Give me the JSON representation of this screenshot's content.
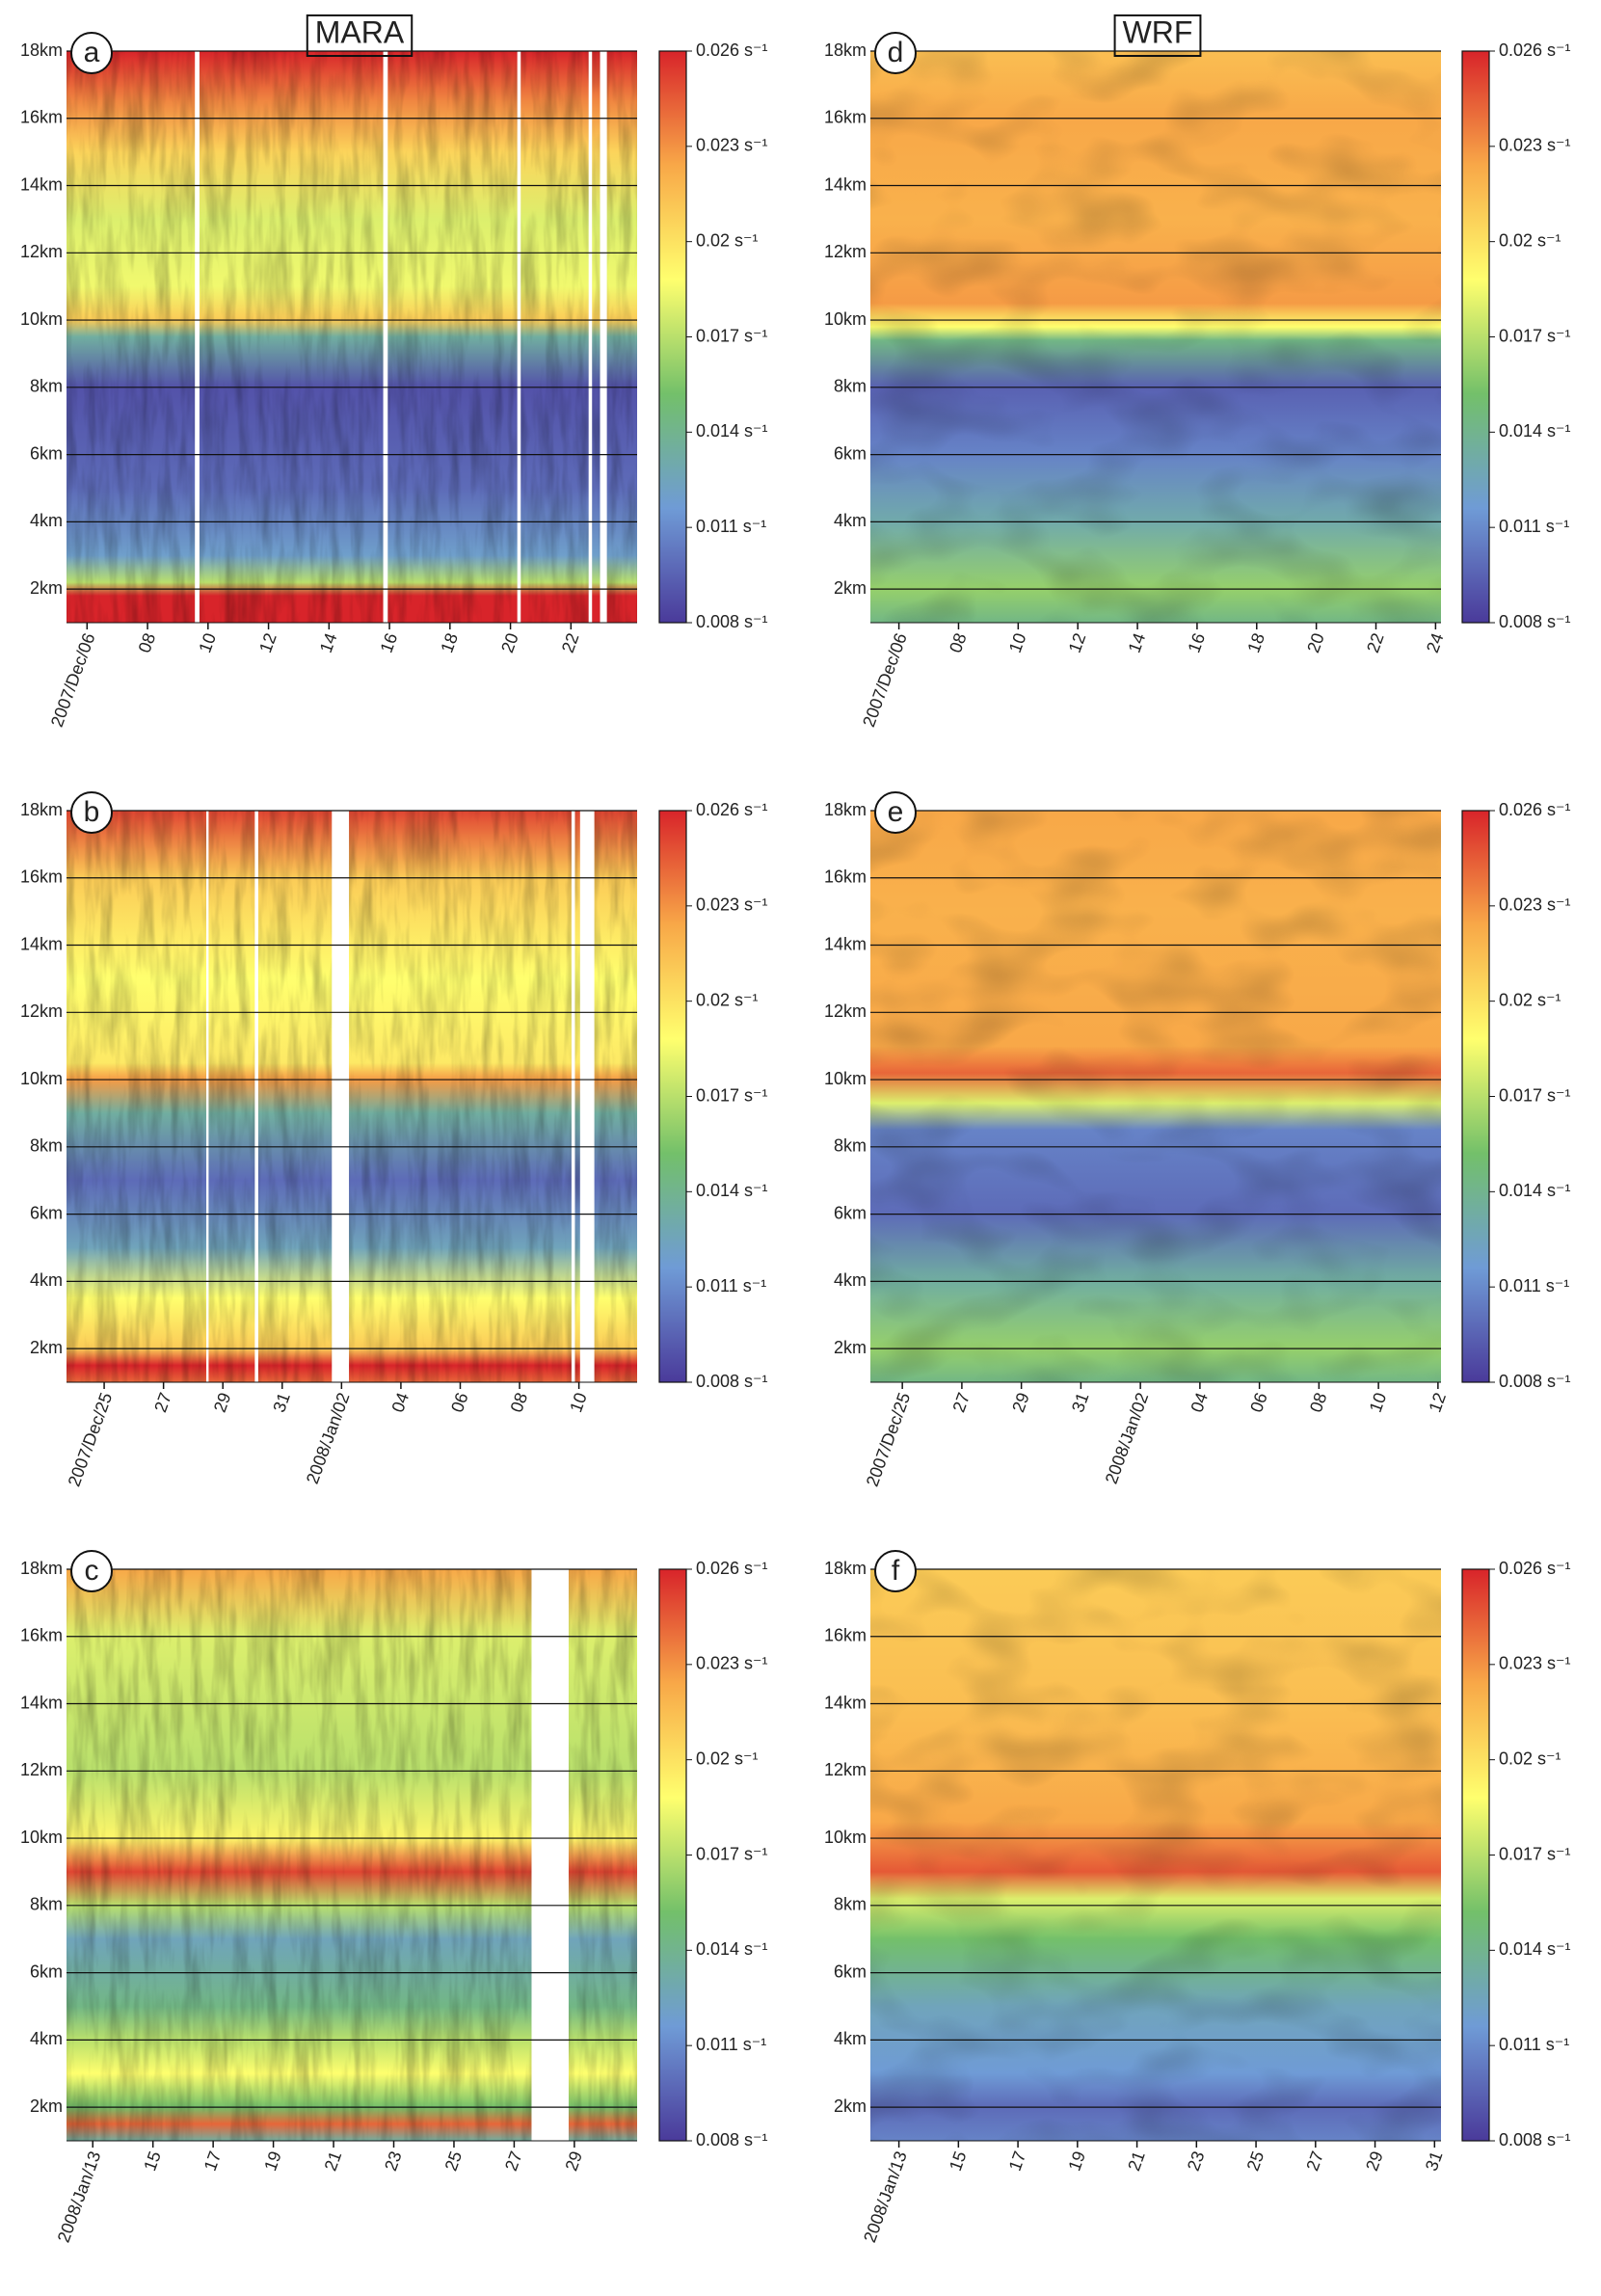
{
  "colorscale": [
    "#4a3a9a",
    "#6f9bd6",
    "#73c06a",
    "#ffff6e",
    "#f8a848",
    "#d8242a"
  ],
  "chart_data": [
    {
      "type": "heatmap",
      "label": "a",
      "title": "MARA",
      "xticks": [
        "2007/Dec/06",
        "08",
        "10",
        "12",
        "14",
        "16",
        "18",
        "20",
        "22"
      ],
      "ylim": [
        1,
        18
      ],
      "yticks": [
        {
          "value": 2,
          "label": "2km"
        },
        {
          "value": 4,
          "label": "4km"
        },
        {
          "value": 6,
          "label": "6km"
        },
        {
          "value": 8,
          "label": "8km"
        },
        {
          "value": 10,
          "label": "10km"
        },
        {
          "value": 12,
          "label": "12km"
        },
        {
          "value": 14,
          "label": "14km"
        },
        {
          "value": 16,
          "label": "16km"
        },
        {
          "value": 18,
          "label": "18km"
        }
      ],
      "clim": [
        0.008,
        0.026
      ],
      "cticks": [
        {
          "value": 0.008,
          "label": "0.008 s⁻¹"
        },
        {
          "value": 0.011,
          "label": "0.011 s⁻¹"
        },
        {
          "value": 0.014,
          "label": "0.014 s⁻¹"
        },
        {
          "value": 0.017,
          "label": "0.017 s⁻¹"
        },
        {
          "value": 0.02,
          "label": "0.02 s⁻¹"
        },
        {
          "value": 0.023,
          "label": "0.023 s⁻¹"
        },
        {
          "value": 0.026,
          "label": "0.026 s⁻¹"
        }
      ]
    },
    {
      "type": "heatmap",
      "label": "b",
      "xticks": [
        "2007/Dec/25",
        "27",
        "29",
        "31",
        "2008/Jan/02",
        "04",
        "06",
        "08",
        "10"
      ],
      "ylim": [
        1,
        18
      ],
      "yticks": [
        {
          "value": 2,
          "label": "2km"
        },
        {
          "value": 4,
          "label": "4km"
        },
        {
          "value": 6,
          "label": "6km"
        },
        {
          "value": 8,
          "label": "8km"
        },
        {
          "value": 10,
          "label": "10km"
        },
        {
          "value": 12,
          "label": "12km"
        },
        {
          "value": 14,
          "label": "14km"
        },
        {
          "value": 16,
          "label": "16km"
        },
        {
          "value": 18,
          "label": "18km"
        }
      ],
      "clim": [
        0.008,
        0.026
      ],
      "cticks": [
        {
          "value": 0.008,
          "label": "0.008 s⁻¹"
        },
        {
          "value": 0.011,
          "label": "0.011 s⁻¹"
        },
        {
          "value": 0.014,
          "label": "0.014 s⁻¹"
        },
        {
          "value": 0.017,
          "label": "0.017 s⁻¹"
        },
        {
          "value": 0.02,
          "label": "0.02 s⁻¹"
        },
        {
          "value": 0.023,
          "label": "0.023 s⁻¹"
        },
        {
          "value": 0.026,
          "label": "0.026 s⁻¹"
        }
      ]
    },
    {
      "type": "heatmap",
      "label": "c",
      "xticks": [
        "2008/Jan/13",
        "15",
        "17",
        "19",
        "21",
        "23",
        "25",
        "27",
        "29"
      ],
      "ylim": [
        1,
        18
      ],
      "yticks": [
        {
          "value": 2,
          "label": "2km"
        },
        {
          "value": 4,
          "label": "4km"
        },
        {
          "value": 6,
          "label": "6km"
        },
        {
          "value": 8,
          "label": "8km"
        },
        {
          "value": 10,
          "label": "10km"
        },
        {
          "value": 12,
          "label": "12km"
        },
        {
          "value": 14,
          "label": "14km"
        },
        {
          "value": 16,
          "label": "16km"
        },
        {
          "value": 18,
          "label": "18km"
        }
      ],
      "clim": [
        0.008,
        0.026
      ],
      "cticks": [
        {
          "value": 0.008,
          "label": "0.008 s⁻¹"
        },
        {
          "value": 0.011,
          "label": "0.011 s⁻¹"
        },
        {
          "value": 0.014,
          "label": "0.014 s⁻¹"
        },
        {
          "value": 0.017,
          "label": "0.017 s⁻¹"
        },
        {
          "value": 0.02,
          "label": "0.02 s⁻¹"
        },
        {
          "value": 0.023,
          "label": "0.023 s⁻¹"
        },
        {
          "value": 0.026,
          "label": "0.026 s⁻¹"
        }
      ]
    },
    {
      "type": "heatmap",
      "label": "d",
      "title": "WRF",
      "xticks": [
        "2007/Dec/06",
        "08",
        "10",
        "12",
        "14",
        "16",
        "18",
        "20",
        "22",
        "24"
      ],
      "ylim": [
        1,
        18
      ],
      "yticks": [
        {
          "value": 2,
          "label": "2km"
        },
        {
          "value": 4,
          "label": "4km"
        },
        {
          "value": 6,
          "label": "6km"
        },
        {
          "value": 8,
          "label": "8km"
        },
        {
          "value": 10,
          "label": "10km"
        },
        {
          "value": 12,
          "label": "12km"
        },
        {
          "value": 14,
          "label": "14km"
        },
        {
          "value": 16,
          "label": "16km"
        },
        {
          "value": 18,
          "label": "18km"
        }
      ],
      "clim": [
        0.008,
        0.026
      ],
      "cticks": [
        {
          "value": 0.008,
          "label": "0.008 s⁻¹"
        },
        {
          "value": 0.011,
          "label": "0.011 s⁻¹"
        },
        {
          "value": 0.014,
          "label": "0.014 s⁻¹"
        },
        {
          "value": 0.017,
          "label": "0.017 s⁻¹"
        },
        {
          "value": 0.02,
          "label": "0.02 s⁻¹"
        },
        {
          "value": 0.023,
          "label": "0.023 s⁻¹"
        },
        {
          "value": 0.026,
          "label": "0.026 s⁻¹"
        }
      ]
    },
    {
      "type": "heatmap",
      "label": "e",
      "xticks": [
        "2007/Dec/25",
        "27",
        "29",
        "31",
        "2008/Jan/02",
        "04",
        "06",
        "08",
        "10",
        "12"
      ],
      "ylim": [
        1,
        18
      ],
      "yticks": [
        {
          "value": 2,
          "label": "2km"
        },
        {
          "value": 4,
          "label": "4km"
        },
        {
          "value": 6,
          "label": "6km"
        },
        {
          "value": 8,
          "label": "8km"
        },
        {
          "value": 10,
          "label": "10km"
        },
        {
          "value": 12,
          "label": "12km"
        },
        {
          "value": 14,
          "label": "14km"
        },
        {
          "value": 16,
          "label": "16km"
        },
        {
          "value": 18,
          "label": "18km"
        }
      ],
      "clim": [
        0.008,
        0.026
      ],
      "cticks": [
        {
          "value": 0.008,
          "label": "0.008 s⁻¹"
        },
        {
          "value": 0.011,
          "label": "0.011 s⁻¹"
        },
        {
          "value": 0.014,
          "label": "0.014 s⁻¹"
        },
        {
          "value": 0.017,
          "label": "0.017 s⁻¹"
        },
        {
          "value": 0.02,
          "label": "0.02 s⁻¹"
        },
        {
          "value": 0.023,
          "label": "0.023 s⁻¹"
        },
        {
          "value": 0.026,
          "label": "0.026 s⁻¹"
        }
      ]
    },
    {
      "type": "heatmap",
      "label": "f",
      "xticks": [
        "2008/Jan/13",
        "15",
        "17",
        "19",
        "21",
        "23",
        "25",
        "27",
        "29",
        "31"
      ],
      "ylim": [
        1,
        18
      ],
      "yticks": [
        {
          "value": 2,
          "label": "2km"
        },
        {
          "value": 4,
          "label": "4km"
        },
        {
          "value": 6,
          "label": "6km"
        },
        {
          "value": 8,
          "label": "8km"
        },
        {
          "value": 10,
          "label": "10km"
        },
        {
          "value": 12,
          "label": "12km"
        },
        {
          "value": 14,
          "label": "14km"
        },
        {
          "value": 16,
          "label": "16km"
        },
        {
          "value": 18,
          "label": "18km"
        }
      ],
      "clim": [
        0.008,
        0.026
      ],
      "cticks": [
        {
          "value": 0.008,
          "label": "0.008 s⁻¹"
        },
        {
          "value": 0.011,
          "label": "0.011 s⁻¹"
        },
        {
          "value": 0.014,
          "label": "0.014 s⁻¹"
        },
        {
          "value": 0.017,
          "label": "0.017 s⁻¹"
        },
        {
          "value": 0.02,
          "label": "0.02 s⁻¹"
        },
        {
          "value": 0.023,
          "label": "0.023 s⁻¹"
        },
        {
          "value": 0.026,
          "label": "0.026 s⁻¹"
        }
      ]
    }
  ]
}
